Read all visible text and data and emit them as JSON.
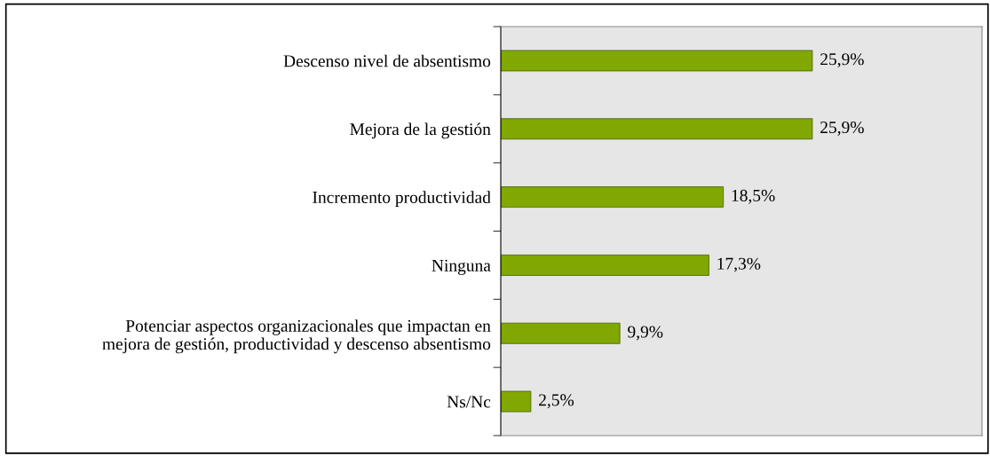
{
  "chart_data": {
    "type": "bar",
    "orientation": "horizontal",
    "categories": [
      "Descenso nivel de absentismo",
      "Mejora de la gestión",
      "Incremento productividad",
      "Ninguna",
      "Potenciar aspectos organizacionales que impactan en\nmejora de gestión, productividad y descenso absentismo",
      "Ns/Nc"
    ],
    "values": [
      25.9,
      25.9,
      18.5,
      17.3,
      9.9,
      2.5
    ],
    "value_labels": [
      "25,9%",
      "25,9%",
      "18,5%",
      "17,3%",
      "9,9%",
      "2,5%"
    ],
    "color": "#80a800",
    "xlim": [
      0,
      40
    ],
    "grid": false,
    "legend": false
  }
}
